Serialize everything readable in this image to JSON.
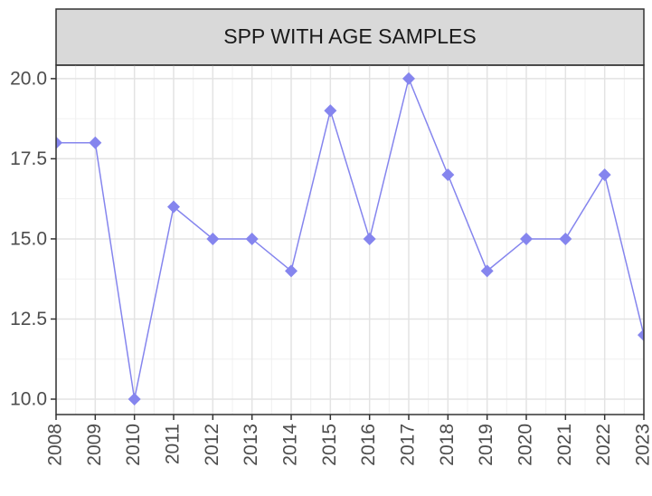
{
  "chart_data": {
    "type": "line",
    "title": "SPP WITH AGE SAMPLES",
    "x": [
      2008,
      2009,
      2010,
      2011,
      2012,
      2013,
      2014,
      2015,
      2016,
      2017,
      2018,
      2019,
      2020,
      2021,
      2022,
      2023
    ],
    "series": [
      {
        "name": "SPP WITH AGE SAMPLES",
        "color": "#8585ee",
        "values": [
          18,
          18,
          10,
          16,
          15,
          15,
          14,
          19,
          15,
          20,
          17,
          14,
          15,
          15,
          17,
          12
        ]
      }
    ],
    "xlim": [
      2008,
      2023
    ],
    "xticks": [
      2008,
      2009,
      2010,
      2011,
      2012,
      2013,
      2014,
      2015,
      2016,
      2017,
      2018,
      2019,
      2020,
      2021,
      2022,
      2023
    ],
    "ylim": [
      9.52,
      20.42
    ],
    "yticks": [
      {
        "value": 10,
        "label": "10.0"
      },
      {
        "value": 12.5,
        "label": "12.5"
      },
      {
        "value": 15,
        "label": "15.0"
      },
      {
        "value": 17.5,
        "label": "17.5"
      },
      {
        "value": 20,
        "label": "20.0"
      }
    ],
    "grid": true
  }
}
